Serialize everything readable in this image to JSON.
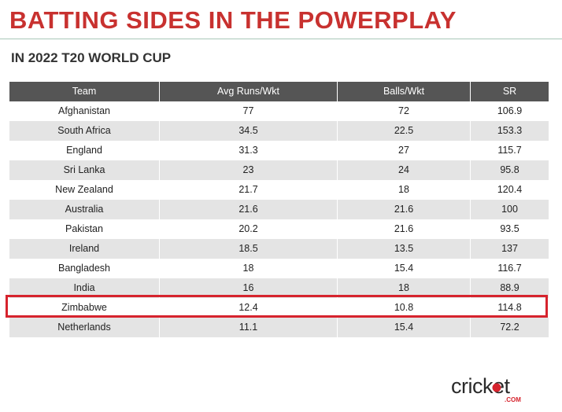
{
  "title": "BATTING SIDES IN THE POWERPLAY",
  "subtitle": "IN 2022 T20 WORLD CUP",
  "highlight_color": "#d6232d",
  "title_color": "#c8312f",
  "logo": {
    "text": "cricket",
    "sub": ".COM",
    "icon": "cricket-com-logo"
  },
  "chart_data": {
    "type": "table",
    "title": "BATTING SIDES IN THE POWERPLAY",
    "subtitle": "IN 2022 T20 WORLD CUP",
    "columns": [
      "Team",
      "Avg Runs/Wkt",
      "Balls/Wkt",
      "SR"
    ],
    "rows": [
      [
        "Afghanistan",
        "77",
        "72",
        "106.9"
      ],
      [
        "South Africa",
        "34.5",
        "22.5",
        "153.3"
      ],
      [
        "England",
        "31.3",
        "27",
        "115.7"
      ],
      [
        "Sri Lanka",
        "23",
        "24",
        "95.8"
      ],
      [
        "New Zealand",
        "21.7",
        "18",
        "120.4"
      ],
      [
        "Australia",
        "21.6",
        "21.6",
        "100"
      ],
      [
        "Pakistan",
        "20.2",
        "21.6",
        "93.5"
      ],
      [
        "Ireland",
        "18.5",
        "13.5",
        "137"
      ],
      [
        "Bangladesh",
        "18",
        "15.4",
        "116.7"
      ],
      [
        "India",
        "16",
        "18",
        "88.9"
      ],
      [
        "Zimbabwe",
        "12.4",
        "10.8",
        "114.8"
      ],
      [
        "Netherlands",
        "11.1",
        "15.4",
        "72.2"
      ]
    ],
    "highlighted_row": "Zimbabwe"
  }
}
